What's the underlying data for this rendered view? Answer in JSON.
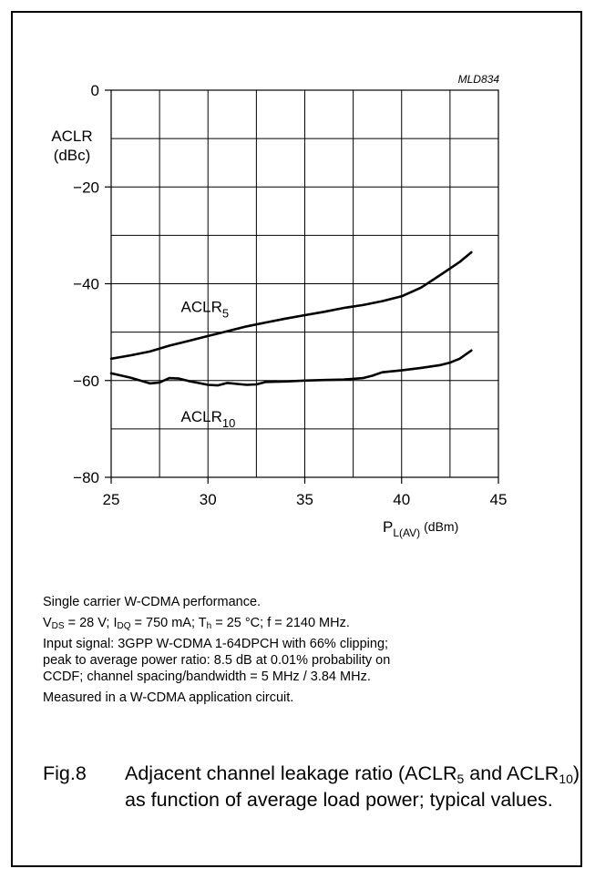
{
  "chart_data": {
    "type": "line",
    "code": "MLD834",
    "ylabel": "ACLR",
    "ylabel_unit": "(dBc)",
    "xlabel_main": "P",
    "xlabel_sub": "L(AV)",
    "xlabel_unit": "(dBm)",
    "xlim": [
      25,
      45
    ],
    "ylim": [
      -80,
      0
    ],
    "x_ticks": [
      25,
      30,
      35,
      40,
      45
    ],
    "y_ticks": [
      0,
      -20,
      -40,
      -60,
      -80
    ],
    "y_tick_labels": [
      "0",
      "−20",
      "−40",
      "−60",
      "−80"
    ],
    "grid": true,
    "series": [
      {
        "name": "ACLR",
        "name_sub": "5",
        "x": [
          25,
          26,
          27,
          28,
          29,
          30,
          31,
          32,
          33,
          34,
          35,
          36,
          37,
          38,
          39,
          40,
          41,
          42,
          43,
          43.6
        ],
        "y": [
          -55.5,
          -54.8,
          -54.0,
          -52.8,
          -51.8,
          -50.8,
          -49.8,
          -48.8,
          -48.0,
          -47.2,
          -46.5,
          -45.8,
          -45.0,
          -44.4,
          -43.6,
          -42.6,
          -40.8,
          -38.2,
          -35.5,
          -33.5
        ]
      },
      {
        "name": "ACLR",
        "name_sub": "10",
        "x": [
          25,
          26,
          27,
          27.5,
          28,
          28.5,
          29,
          29.5,
          30,
          30.5,
          31,
          31.5,
          32,
          32.5,
          33,
          34,
          35,
          36,
          37,
          38,
          38.5,
          39,
          40,
          41,
          42,
          42.5,
          43,
          43.6
        ],
        "y": [
          -58.5,
          -59.4,
          -60.6,
          -60.4,
          -59.5,
          -59.6,
          -60.1,
          -60.5,
          -60.9,
          -61.0,
          -60.5,
          -60.7,
          -60.9,
          -60.8,
          -60.3,
          -60.2,
          -60.0,
          -59.9,
          -59.8,
          -59.5,
          -59.0,
          -58.3,
          -57.9,
          -57.4,
          -56.8,
          -56.3,
          -55.5,
          -53.8
        ]
      }
    ],
    "series_labels": [
      {
        "text": "ACLR",
        "sub": "5",
        "x": 28.6,
        "y": -45.8
      },
      {
        "text": "ACLR",
        "sub": "10",
        "x": 28.6,
        "y": -68.5
      }
    ]
  },
  "notes": {
    "line1": "Single carrier W-CDMA performance.",
    "line2": {
      "v": "V",
      "v_sub": "DS",
      "v_val": " = 28 V; I",
      "i_sub": "DQ",
      "i_val": " = 750 mA; T",
      "t_sub": "h",
      "t_val": " = 25 °C; f = 2140 MHz."
    },
    "line3": "Input signal: 3GPP W-CDMA 1-64DPCH with 66% clipping;",
    "line4": "peak to average power ratio: 8.5 dB at 0.01% probability on",
    "line5": "CCDF; channel spacing/bandwidth = 5 MHz / 3.84 MHz.",
    "line6": "Measured in a W-CDMA application circuit."
  },
  "caption": {
    "fig": "Fig.8",
    "part1": "Adjacent channel leakage ratio (ACLR",
    "sub1": "5",
    "part2": " and ACLR",
    "sub2": "10",
    "part3": ") as function of average load power; typical values."
  }
}
